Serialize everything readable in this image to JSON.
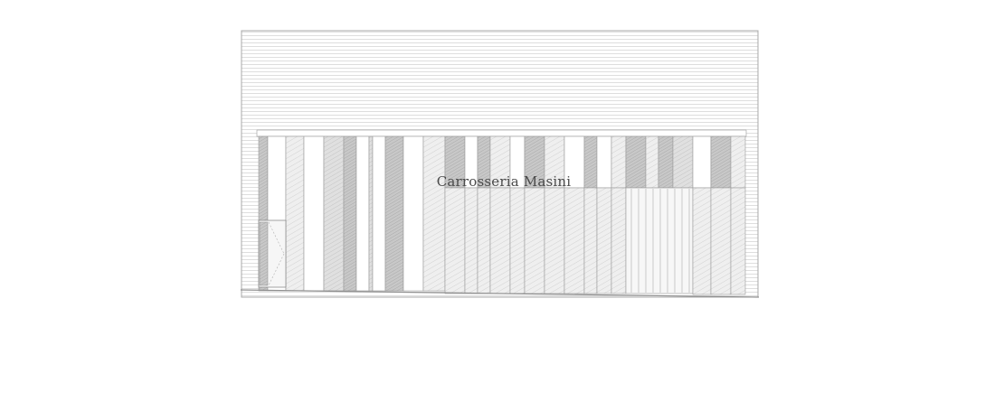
{
  "building": {
    "sign_text": "Carrosseria Masini"
  },
  "colors": {
    "background": "#ffffff",
    "line": "#9a9a9a",
    "siding": "#c9c9c9",
    "panel_light": "#ececec",
    "panel_mid": "#dcdcdc",
    "panel_dark": "#bdbdbd",
    "sign": "#4a4a4a"
  }
}
